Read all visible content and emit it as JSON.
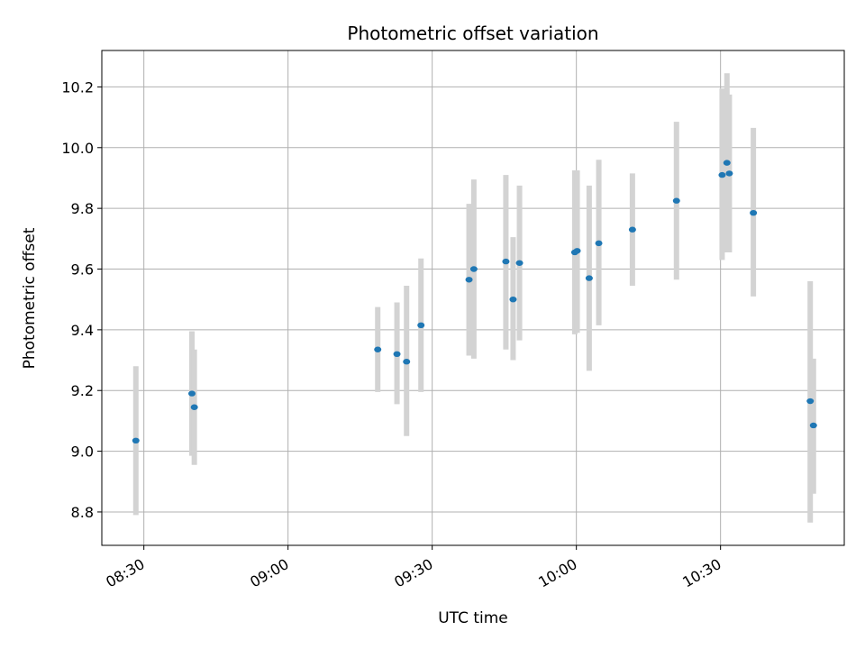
{
  "chart_data": {
    "type": "scatter",
    "title": "Photometric offset variation",
    "xlabel": "UTC time",
    "ylabel": "Photometric offset",
    "x_ticks": [
      "08:30",
      "09:00",
      "09:30",
      "10:00",
      "10:30"
    ],
    "y_ticks": [
      "8.8",
      "9.0",
      "9.2",
      "9.4",
      "9.6",
      "9.8",
      "10.0",
      "10.2"
    ],
    "xlim": [
      "08:21:15",
      "10:55:45"
    ],
    "ylim": [
      8.69,
      10.32
    ],
    "grid": true,
    "colors": {
      "points": "#1f77b4",
      "errorbars": "#d3d3d3",
      "grid": "#b0b0b0",
      "axes": "#000000"
    },
    "points": [
      {
        "x": "08:28:20",
        "y": 9.035,
        "ymin": 8.79,
        "ymax": 9.28
      },
      {
        "x": "08:40:00",
        "y": 9.19,
        "ymin": 8.985,
        "ymax": 9.395
      },
      {
        "x": "08:40:30",
        "y": 9.145,
        "ymin": 8.955,
        "ymax": 9.335
      },
      {
        "x": "09:18:40",
        "y": 9.335,
        "ymin": 9.195,
        "ymax": 9.475
      },
      {
        "x": "09:22:40",
        "y": 9.32,
        "ymin": 9.155,
        "ymax": 9.49
      },
      {
        "x": "09:24:40",
        "y": 9.295,
        "ymin": 9.05,
        "ymax": 9.545
      },
      {
        "x": "09:27:40",
        "y": 9.415,
        "ymin": 9.195,
        "ymax": 9.635
      },
      {
        "x": "09:37:40",
        "y": 9.565,
        "ymin": 9.315,
        "ymax": 9.815
      },
      {
        "x": "09:38:40",
        "y": 9.6,
        "ymin": 9.305,
        "ymax": 9.895
      },
      {
        "x": "09:45:20",
        "y": 9.625,
        "ymin": 9.335,
        "ymax": 9.91
      },
      {
        "x": "09:46:50",
        "y": 9.5,
        "ymin": 9.3,
        "ymax": 9.705
      },
      {
        "x": "09:48:10",
        "y": 9.62,
        "ymin": 9.365,
        "ymax": 9.875
      },
      {
        "x": "09:59:40",
        "y": 9.655,
        "ymin": 9.385,
        "ymax": 9.925
      },
      {
        "x": "10:00:10",
        "y": 9.66,
        "ymin": 9.39,
        "ymax": 9.925
      },
      {
        "x": "10:02:40",
        "y": 9.57,
        "ymin": 9.265,
        "ymax": 9.875
      },
      {
        "x": "10:04:40",
        "y": 9.685,
        "ymin": 9.415,
        "ymax": 9.96
      },
      {
        "x": "10:11:40",
        "y": 9.73,
        "ymin": 9.545,
        "ymax": 9.915
      },
      {
        "x": "10:20:50",
        "y": 9.825,
        "ymin": 9.565,
        "ymax": 10.085
      },
      {
        "x": "10:30:20",
        "y": 9.91,
        "ymin": 9.63,
        "ymax": 10.195
      },
      {
        "x": "10:31:20",
        "y": 9.95,
        "ymin": 9.655,
        "ymax": 10.245
      },
      {
        "x": "10:31:50",
        "y": 9.915,
        "ymin": 9.655,
        "ymax": 10.175
      },
      {
        "x": "10:36:50",
        "y": 9.785,
        "ymin": 9.51,
        "ymax": 10.065
      },
      {
        "x": "10:48:40",
        "y": 9.165,
        "ymin": 8.765,
        "ymax": 9.56
      },
      {
        "x": "10:49:20",
        "y": 9.085,
        "ymin": 8.86,
        "ymax": 9.305
      }
    ]
  }
}
